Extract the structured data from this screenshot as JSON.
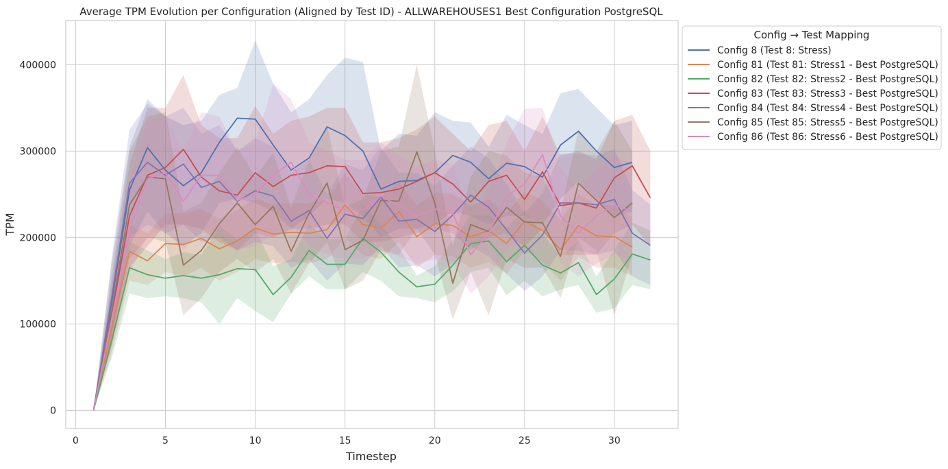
{
  "chart_data": {
    "type": "line",
    "title": "Average TPM Evolution per Configuration (Aligned by Test ID) - ALLWAREHOUSES1 Best Configuration PostgreSQL",
    "xlabel": "Timestep",
    "ylabel": "TPM",
    "xlim": [
      -0.55,
      33.55
    ],
    "ylim": [
      -21000,
      451000
    ],
    "xticks": [
      0,
      5,
      10,
      15,
      20,
      25,
      30
    ],
    "yticks": [
      0,
      100000,
      200000,
      300000,
      400000
    ],
    "grid": true,
    "legend": {
      "title": "Config → Test Mapping",
      "placement": "outside-top-right"
    },
    "series": [
      {
        "name": "Config 8 (Test 8: Stress)",
        "color": "#4c72b0",
        "x": [
          1,
          2,
          3,
          4,
          5,
          6,
          7,
          8,
          9,
          10,
          11,
          12,
          13,
          14,
          15,
          16,
          17,
          18,
          19,
          20,
          21,
          22,
          23,
          24,
          25,
          26,
          27,
          28,
          29,
          30,
          31
        ],
        "values": [
          0,
          125000,
          255000,
          304000,
          278000,
          260000,
          275000,
          310000,
          338000,
          337000,
          307000,
          278000,
          292000,
          328000,
          318000,
          300000,
          256000,
          265000,
          266000,
          275000,
          295000,
          287000,
          268000,
          286000,
          282000,
          270000,
          307000,
          323000,
          300000,
          281000,
          287000
        ],
        "band_low": [
          0,
          80000,
          190000,
          230000,
          205000,
          190000,
          205000,
          240000,
          245000,
          240000,
          230000,
          210000,
          225000,
          245000,
          240000,
          225000,
          200000,
          210000,
          210000,
          215000,
          230000,
          225000,
          215000,
          225000,
          225000,
          215000,
          245000,
          265000,
          245000,
          225000,
          230000
        ],
        "band_high": [
          0,
          170000,
          305000,
          360000,
          340000,
          330000,
          335000,
          365000,
          373000,
          428000,
          378000,
          345000,
          360000,
          388000,
          408000,
          403000,
          300000,
          320000,
          318000,
          345000,
          335000,
          333000,
          305000,
          342000,
          330000,
          320000,
          367000,
          372000,
          350000,
          330000,
          335000
        ]
      },
      {
        "name": "Config 81 (Test 81: Stress1 - Best PostgreSQL)",
        "color": "#dd8452",
        "x": [
          1,
          2,
          3,
          4,
          5,
          6,
          7,
          8,
          9,
          10,
          11,
          12,
          13,
          14,
          15,
          16,
          17,
          18,
          19,
          20,
          21,
          22,
          23,
          24,
          25,
          26,
          27,
          28,
          29,
          30,
          31
        ],
        "values": [
          0,
          95000,
          184000,
          173000,
          193000,
          192000,
          199000,
          187000,
          196000,
          211000,
          204000,
          206000,
          205000,
          209000,
          238000,
          215000,
          211000,
          230000,
          201000,
          216000,
          214000,
          201000,
          208000,
          193000,
          219000,
          208000,
          186000,
          214000,
          202000,
          201000,
          189000
        ],
        "band_low": [
          0,
          65000,
          150000,
          145000,
          160000,
          155000,
          165000,
          150000,
          160000,
          175000,
          170000,
          172000,
          170000,
          175000,
          200000,
          180000,
          175000,
          195000,
          165000,
          180000,
          178000,
          165000,
          172000,
          158000,
          185000,
          172000,
          150000,
          178000,
          165000,
          165000,
          155000
        ],
        "band_high": [
          0,
          125000,
          215000,
          205000,
          228000,
          228000,
          233000,
          222000,
          232000,
          245000,
          238000,
          240000,
          240000,
          243000,
          275000,
          250000,
          247000,
          265000,
          237000,
          252000,
          250000,
          237000,
          244000,
          228000,
          253000,
          243000,
          220000,
          250000,
          238000,
          237000,
          223000
        ]
      },
      {
        "name": "Config 82 (Test 82: Stress2 - Best PostgreSQL)",
        "color": "#55a868",
        "x": [
          1,
          2,
          3,
          4,
          5,
          6,
          7,
          8,
          9,
          10,
          11,
          12,
          13,
          14,
          15,
          16,
          17,
          18,
          19,
          20,
          21,
          22,
          23,
          24,
          25,
          26,
          27,
          28,
          29,
          30,
          31,
          32
        ],
        "values": [
          0,
          80000,
          165000,
          157000,
          153000,
          156000,
          153000,
          157000,
          164000,
          163000,
          134000,
          154000,
          185000,
          169000,
          169000,
          199000,
          183000,
          160000,
          143000,
          146000,
          168000,
          193000,
          196000,
          172000,
          191000,
          168000,
          159000,
          171000,
          134000,
          152000,
          181000,
          174000
        ],
        "band_low": [
          0,
          60000,
          135000,
          130000,
          132000,
          130000,
          125000,
          100000,
          130000,
          115000,
          102000,
          135000,
          155000,
          140000,
          140000,
          160000,
          150000,
          132000,
          130000,
          125000,
          138000,
          160000,
          165000,
          133000,
          150000,
          132000,
          140000,
          145000,
          113000,
          118000,
          145000,
          140000
        ],
        "band_high": [
          0,
          100000,
          195000,
          185000,
          175000,
          183000,
          180000,
          213000,
          198000,
          210000,
          167000,
          175000,
          215000,
          198000,
          198000,
          238000,
          215000,
          188000,
          156000,
          167000,
          197000,
          226000,
          227000,
          211000,
          232000,
          204000,
          178000,
          197000,
          155000,
          186000,
          217000,
          208000
        ]
      },
      {
        "name": "Config 83 (Test 83: Stress3 - Best PostgreSQL)",
        "color": "#c44e52",
        "x": [
          1,
          2,
          3,
          4,
          5,
          6,
          7,
          8,
          9,
          10,
          11,
          12,
          13,
          14,
          15,
          16,
          17,
          18,
          19,
          20,
          21,
          22,
          23,
          24,
          25,
          26,
          27,
          28,
          29,
          30,
          31,
          32
        ],
        "values": [
          0,
          110000,
          225000,
          272000,
          281000,
          302000,
          270000,
          254000,
          249000,
          275000,
          259000,
          272000,
          275000,
          283000,
          282000,
          251000,
          252000,
          256000,
          265000,
          275000,
          262000,
          241000,
          265000,
          272000,
          244000,
          276000,
          237000,
          240000,
          234000,
          269000,
          283000,
          246000
        ],
        "band_low": [
          0,
          75000,
          165000,
          190000,
          215000,
          215000,
          210000,
          195000,
          185000,
          205000,
          200000,
          210000,
          210000,
          215000,
          215000,
          195000,
          195000,
          200000,
          205000,
          210000,
          205000,
          185000,
          200000,
          205000,
          190000,
          210000,
          180000,
          180000,
          180000,
          205000,
          215000,
          190000
        ],
        "band_high": [
          0,
          145000,
          285000,
          350000,
          350000,
          388000,
          330000,
          315000,
          315000,
          352000,
          320000,
          335000,
          340000,
          350000,
          350000,
          310000,
          310000,
          315000,
          325000,
          340000,
          320000,
          300000,
          330000,
          335000,
          300000,
          340000,
          295000,
          300000,
          290000,
          335000,
          342000,
          300000
        ]
      },
      {
        "name": "Config 84 (Test 84: Stress4 - Best PostgreSQL)",
        "color": "#8172b3",
        "x": [
          1,
          2,
          3,
          4,
          5,
          6,
          7,
          8,
          9,
          10,
          11,
          12,
          13,
          14,
          15,
          16,
          17,
          18,
          19,
          20,
          21,
          22,
          23,
          24,
          25,
          26,
          27,
          28,
          29,
          30,
          31,
          32
        ],
        "values": [
          0,
          130000,
          263000,
          287000,
          272000,
          285000,
          258000,
          265000,
          242000,
          254000,
          248000,
          219000,
          231000,
          199000,
          227000,
          222000,
          247000,
          219000,
          221000,
          207000,
          226000,
          249000,
          235000,
          209000,
          182000,
          203000,
          240000,
          240000,
          238000,
          244000,
          205000,
          191000
        ],
        "band_low": [
          0,
          85000,
          200000,
          215000,
          205000,
          215000,
          195000,
          200000,
          185000,
          195000,
          190000,
          165000,
          175000,
          150000,
          170000,
          168000,
          190000,
          165000,
          168000,
          155000,
          170000,
          190000,
          178000,
          158000,
          138000,
          155000,
          185000,
          185000,
          180000,
          185000,
          155000,
          145000
        ],
        "band_high": [
          0,
          175000,
          325000,
          355000,
          340000,
          350000,
          320000,
          330000,
          300000,
          315000,
          305000,
          275000,
          290000,
          250000,
          285000,
          278000,
          305000,
          275000,
          275000,
          260000,
          283000,
          305000,
          292000,
          262000,
          228000,
          252000,
          297000,
          297000,
          295000,
          302000,
          255000,
          238000
        ]
      },
      {
        "name": "Config 85 (Test 85: Stress5 - Best PostgreSQL)",
        "color": "#937860",
        "x": [
          1,
          2,
          3,
          4,
          5,
          6,
          7,
          8,
          9,
          10,
          11,
          12,
          13,
          14,
          15,
          16,
          17,
          18,
          19,
          20,
          21,
          22,
          23,
          24,
          25,
          26,
          27,
          28,
          29,
          30,
          31
        ],
        "values": [
          0,
          115000,
          238000,
          270000,
          268000,
          168000,
          185000,
          216000,
          240000,
          215000,
          236000,
          184000,
          228000,
          263000,
          186000,
          197000,
          243000,
          242000,
          299000,
          240000,
          147000,
          215000,
          207000,
          235000,
          218000,
          217000,
          178000,
          263000,
          243000,
          223000,
          240000
        ],
        "band_low": [
          0,
          75000,
          175000,
          200000,
          195000,
          110000,
          130000,
          160000,
          175000,
          160000,
          175000,
          135000,
          170000,
          195000,
          140000,
          150000,
          185000,
          180000,
          210000,
          180000,
          105000,
          160000,
          110000,
          175000,
          165000,
          165000,
          130000,
          200000,
          185000,
          110000,
          180000
        ],
        "band_high": [
          0,
          155000,
          300000,
          340000,
          345000,
          230000,
          240000,
          275000,
          305000,
          270000,
          298000,
          235000,
          290000,
          330000,
          235000,
          245000,
          300000,
          305000,
          400000,
          300000,
          190000,
          270000,
          300000,
          295000,
          275000,
          270000,
          228000,
          325000,
          300000,
          335000,
          300000
        ]
      },
      {
        "name": "Config 86 (Test 86: Stress6 - Best PostgreSQL)",
        "color": "#da8bc3",
        "x": [
          1,
          2,
          3,
          4,
          5,
          6,
          7,
          8,
          9,
          10,
          11,
          12,
          13,
          14,
          15,
          16,
          17,
          18,
          19,
          20,
          21,
          22,
          23,
          24,
          25,
          26,
          27,
          28,
          29,
          30,
          31
        ],
        "values": [
          0,
          105000,
          210000,
          268000,
          275000,
          242000,
          272000,
          272000,
          243000,
          250000,
          272000,
          287000,
          250000,
          240000,
          232000,
          232000,
          248000,
          237000,
          225000,
          233000,
          228000,
          180000,
          205000,
          248000,
          262000,
          296000,
          225000,
          205000,
          225000,
          238000,
          230000
        ],
        "band_low": [
          0,
          70000,
          160000,
          200000,
          210000,
          185000,
          210000,
          210000,
          185000,
          190000,
          205000,
          215000,
          190000,
          180000,
          175000,
          175000,
          185000,
          178000,
          170000,
          175000,
          172000,
          135000,
          155000,
          185000,
          195000,
          235000,
          170000,
          155000,
          170000,
          180000,
          175000
        ],
        "band_high": [
          0,
          140000,
          265000,
          335000,
          340000,
          300000,
          345000,
          340000,
          300000,
          310000,
          378000,
          360000,
          310000,
          300000,
          290000,
          290000,
          310000,
          295000,
          282000,
          290000,
          285000,
          225000,
          255000,
          310000,
          349000,
          350000,
          280000,
          255000,
          280000,
          295000,
          285000
        ]
      }
    ]
  }
}
